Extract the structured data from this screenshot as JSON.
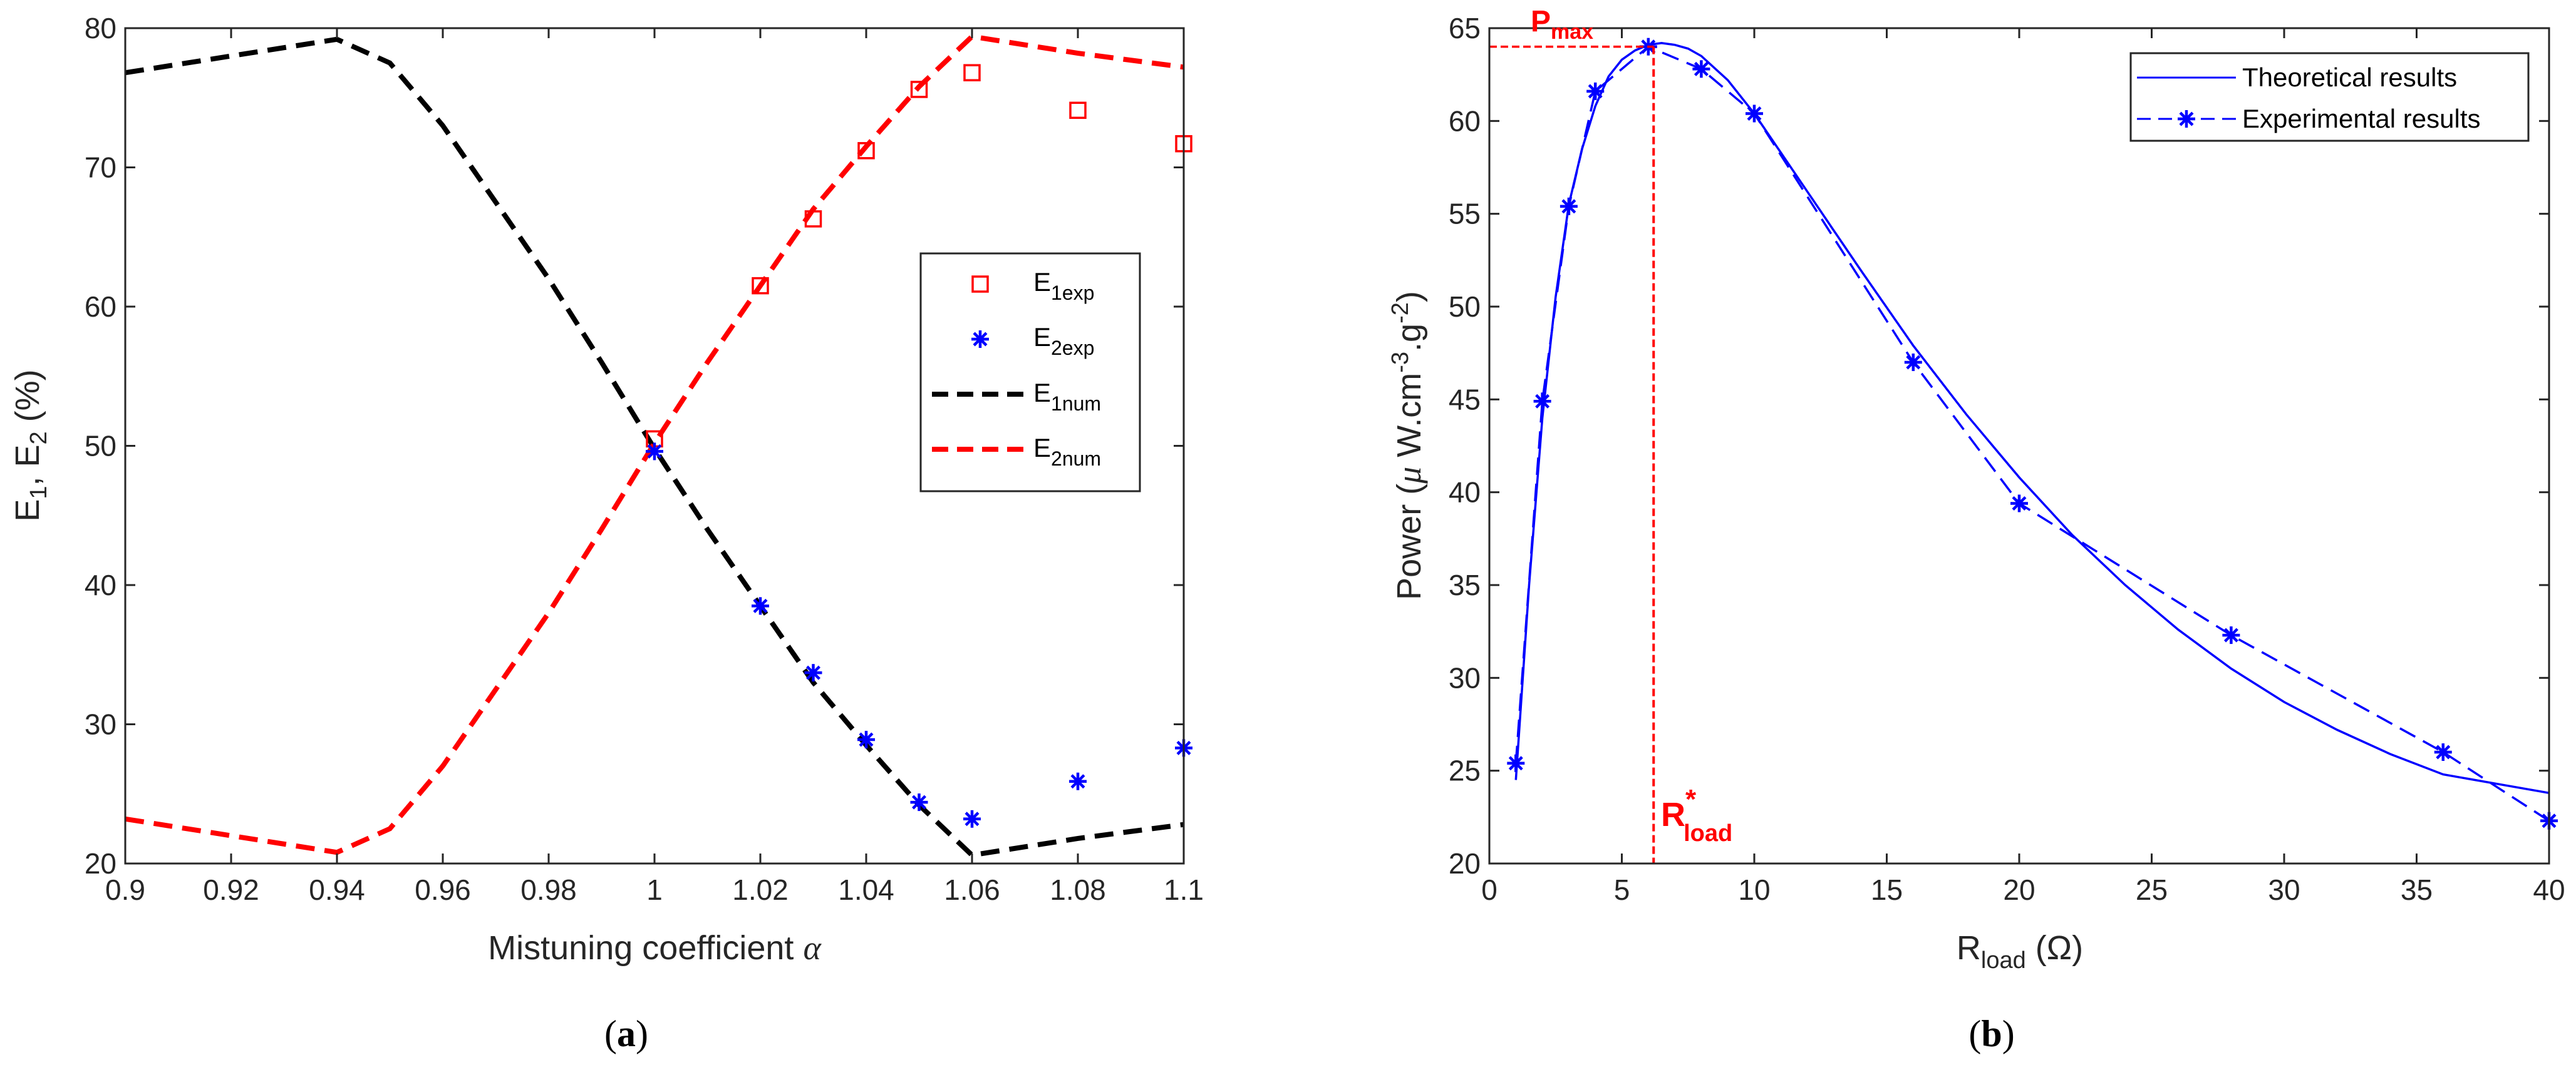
{
  "chart_data": [
    {
      "type": "line",
      "panel": "a",
      "caption": "a",
      "title": "",
      "xlabel": "Mistuning coefficient",
      "xlabel_symbol": "α",
      "ylabel": "E",
      "ylabel_sub1": "1",
      "ylabel_sep": ", E",
      "ylabel_sub2": "2",
      "ylabel_unit": " (%)",
      "xlim": [
        0.9,
        1.1
      ],
      "ylim": [
        20,
        80
      ],
      "xticks": [
        0.9,
        0.92,
        0.94,
        0.96,
        0.98,
        1,
        1.02,
        1.04,
        1.06,
        1.08,
        1.1
      ],
      "xtick_labels": [
        "0.9",
        "0.92",
        "0.94",
        "0.96",
        "0.98",
        "1",
        "1.02",
        "1.04",
        "1.06",
        "1.08",
        "1.1"
      ],
      "yticks": [
        20,
        30,
        40,
        50,
        60,
        70,
        80
      ],
      "ytick_labels": [
        "20",
        "30",
        "40",
        "50",
        "60",
        "70",
        "80"
      ],
      "legend_position": "center-right",
      "series": [
        {
          "name": "E",
          "sub": "1exp",
          "style": "red-square-markers",
          "color": "#ff0000",
          "x": [
            1.0,
            1.02,
            1.03,
            1.04,
            1.05,
            1.06,
            1.08,
            1.1
          ],
          "y": [
            50.5,
            61.5,
            66.3,
            71.2,
            75.6,
            76.8,
            74.1,
            71.7
          ]
        },
        {
          "name": "E",
          "sub": "2exp",
          "style": "blue-star-markers",
          "color": "#0000ff",
          "x": [
            1.0,
            1.02,
            1.03,
            1.04,
            1.05,
            1.06,
            1.08,
            1.1
          ],
          "y": [
            49.6,
            38.5,
            33.7,
            28.9,
            24.4,
            23.2,
            25.9,
            28.3
          ]
        },
        {
          "name": "E",
          "sub": "1num",
          "style": "black-dashed",
          "color": "#000000",
          "x": [
            0.9,
            0.94,
            0.95,
            0.96,
            0.97,
            0.98,
            0.99,
            1.0,
            1.01,
            1.02,
            1.03,
            1.04,
            1.05,
            1.06,
            1.08,
            1.1
          ],
          "y": [
            76.8,
            79.2,
            77.5,
            73.0,
            67.5,
            62.0,
            56.0,
            49.8,
            44.0,
            38.5,
            33.0,
            28.5,
            24.2,
            20.6,
            21.8,
            22.8
          ]
        },
        {
          "name": "E",
          "sub": "2num",
          "style": "red-dashed",
          "color": "#ff0000",
          "x": [
            0.9,
            0.94,
            0.95,
            0.96,
            0.97,
            0.98,
            0.99,
            1.0,
            1.01,
            1.02,
            1.03,
            1.04,
            1.05,
            1.06,
            1.08,
            1.1
          ],
          "y": [
            23.2,
            20.8,
            22.5,
            27.0,
            32.5,
            38.0,
            44.0,
            50.2,
            56.0,
            61.5,
            67.0,
            71.5,
            75.8,
            79.4,
            78.2,
            77.2
          ]
        }
      ]
    },
    {
      "type": "line",
      "panel": "b",
      "caption": "b",
      "title": "",
      "xlabel": "R",
      "xlabel_sub": "load",
      "xlabel_unit": " (Ω)",
      "ylabel": "Power (",
      "ylabel_mu": "μ",
      "ylabel_rest": " W.cm",
      "ylabel_sup1": "-3",
      "ylabel_mid": ".g",
      "ylabel_sup2": "-2",
      "ylabel_end": ")",
      "xlim": [
        0,
        40
      ],
      "ylim": [
        20,
        65
      ],
      "xticks": [
        0,
        5,
        10,
        15,
        20,
        25,
        30,
        35,
        40
      ],
      "xtick_labels": [
        "0",
        "5",
        "10",
        "15",
        "20",
        "25",
        "30",
        "35",
        "40"
      ],
      "yticks": [
        20,
        25,
        30,
        35,
        40,
        45,
        50,
        55,
        60,
        65
      ],
      "ytick_labels": [
        "20",
        "25",
        "30",
        "35",
        "40",
        "45",
        "50",
        "55",
        "60",
        "65"
      ],
      "legend_position": "top-right",
      "annotations": {
        "pmax_label": "P",
        "pmax_sub": "max",
        "pmax_value": 64.0,
        "rload_label": "R",
        "rload_sup": "*",
        "rload_sub": "load",
        "rload_value": 6.2
      },
      "series": [
        {
          "name": "Theoretical results",
          "style": "blue-solid",
          "color": "#0000ff",
          "x": [
            1,
            1.5,
            2,
            2.5,
            3,
            3.5,
            4,
            4.5,
            5,
            5.5,
            6,
            6.5,
            7,
            7.5,
            8,
            9,
            10,
            11,
            12,
            14,
            16,
            18,
            20,
            22,
            24,
            26,
            28,
            30,
            32,
            34,
            36,
            38,
            40
          ],
          "y": [
            24.5,
            35.0,
            44.0,
            50.5,
            55.5,
            58.5,
            60.8,
            62.4,
            63.3,
            63.8,
            64.1,
            64.2,
            64.1,
            63.9,
            63.5,
            62.2,
            60.4,
            58.3,
            56.2,
            52.0,
            47.9,
            44.2,
            40.8,
            37.7,
            35.0,
            32.6,
            30.5,
            28.7,
            27.2,
            25.9,
            24.8,
            24.3,
            23.8
          ]
        },
        {
          "name": "Experimental results",
          "style": "blue-dashed-star",
          "color": "#0000ff",
          "x": [
            1,
            2,
            3,
            4,
            6,
            8,
            10,
            16,
            20,
            28,
            36,
            40
          ],
          "y": [
            25.4,
            44.9,
            55.4,
            61.6,
            64.0,
            62.8,
            60.4,
            47.0,
            39.4,
            32.3,
            26.0,
            22.3
          ]
        }
      ]
    }
  ]
}
